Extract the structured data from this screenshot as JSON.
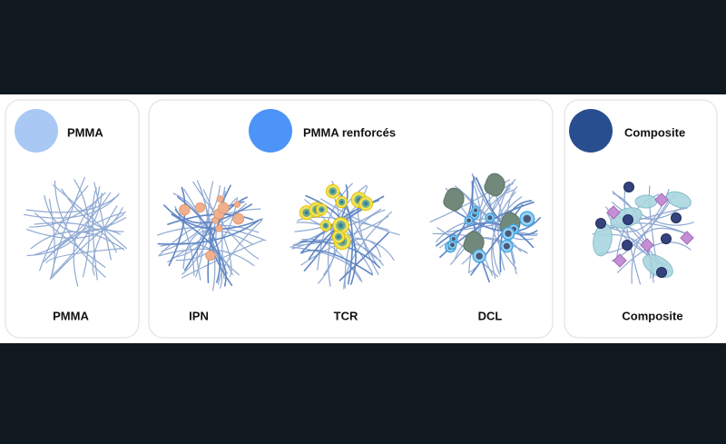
{
  "panels": [
    {
      "title": "PMMA",
      "items": [
        "PMMA"
      ]
    },
    {
      "title": "PMMA renforcés",
      "items": [
        "IPN",
        "TCR",
        "DCL"
      ]
    },
    {
      "title": "Composite",
      "items": [
        "Composite"
      ]
    }
  ]
}
